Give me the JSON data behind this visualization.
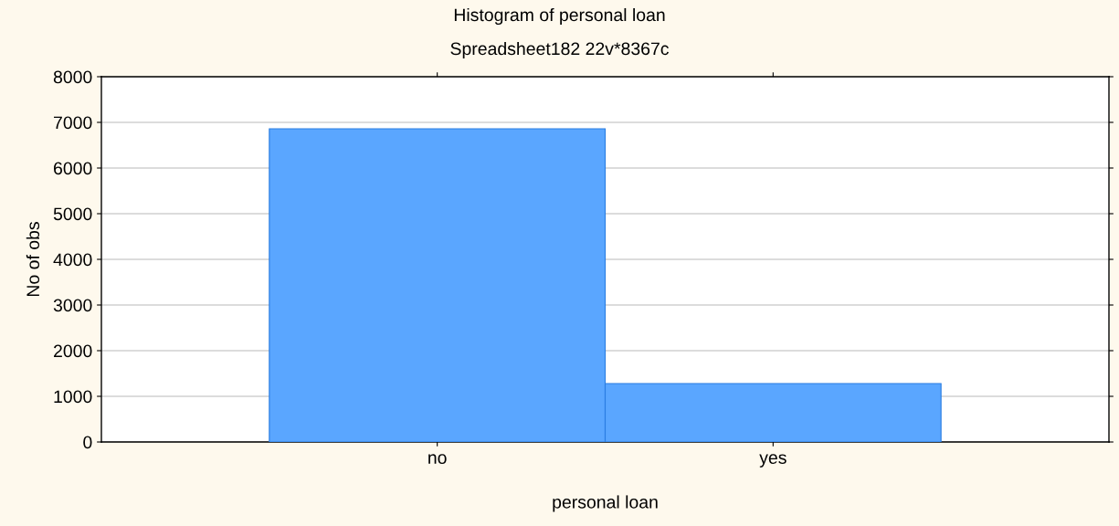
{
  "chart_data": {
    "type": "bar",
    "title": "Histogram of personal loan",
    "subtitle": "Spreadsheet182 22v*8367c",
    "xlabel": "personal loan",
    "ylabel": "No of obs",
    "categories": [
      "no",
      "yes"
    ],
    "values": [
      6860,
      1280
    ],
    "color": "#5aa6ff",
    "ylim": [
      0,
      8000
    ],
    "yticks": [
      0,
      1000,
      2000,
      3000,
      4000,
      5000,
      6000,
      7000,
      8000
    ],
    "grid": "y"
  }
}
